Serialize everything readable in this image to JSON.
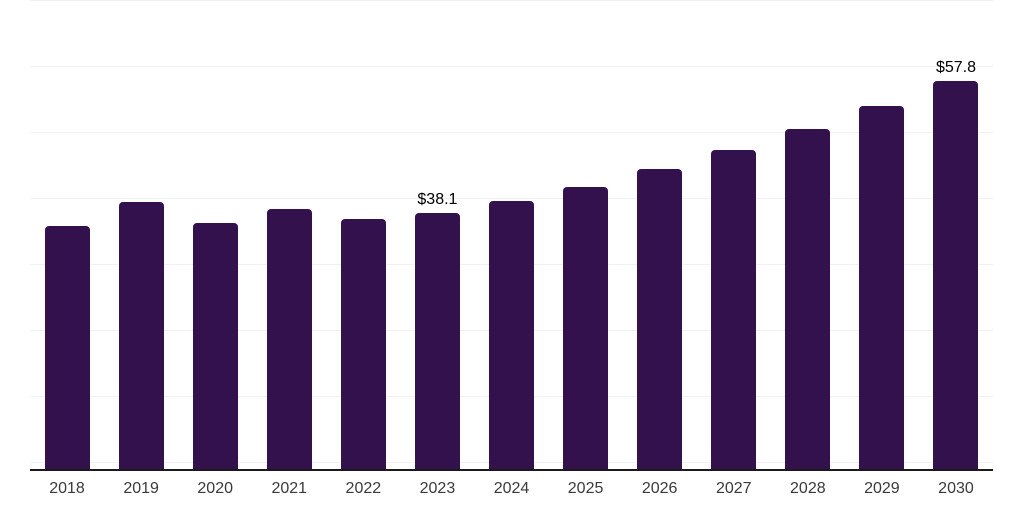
{
  "chart_data": {
    "type": "bar",
    "title": "",
    "xlabel": "",
    "ylabel": "",
    "categories": [
      "2018",
      "2019",
      "2020",
      "2021",
      "2022",
      "2023",
      "2024",
      "2025",
      "2026",
      "2027",
      "2028",
      "2029",
      "2030"
    ],
    "values": [
      36.2,
      39.7,
      36.6,
      38.7,
      37.2,
      38.1,
      39.9,
      42.0,
      44.7,
      47.5,
      50.7,
      54.1,
      57.8
    ],
    "data_labels": {
      "2023": "$38.1",
      "2030": "$57.8"
    },
    "ylim": [
      0,
      70
    ],
    "grid": "horizontal",
    "y_tick_labels_visible": false,
    "legend": "none",
    "colors": {
      "bar": "#33114d",
      "gridline": "#f2f2f2",
      "axis_line": "#1a1a1a",
      "x_tick_label": "#3a3a3a",
      "data_label": "#000000",
      "background": "#ffffff"
    }
  }
}
